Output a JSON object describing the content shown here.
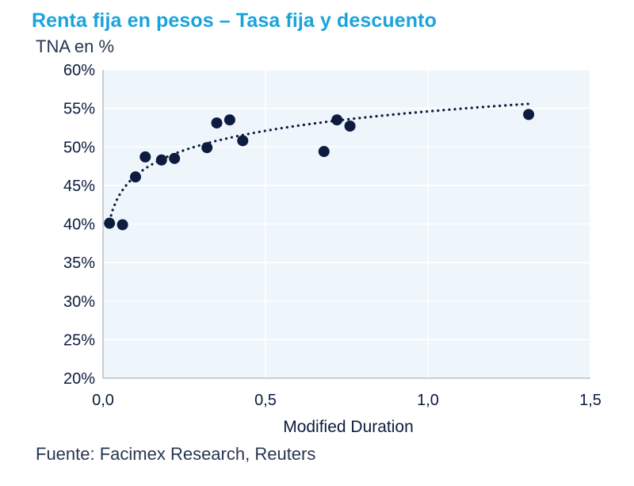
{
  "title": "Renta fija en pesos – Tasa fija y descuento",
  "subtitle": "TNA en %",
  "source": "Fuente: Facimex Research, Reuters",
  "colors": {
    "title": "#1aa3dc",
    "plot_bg": "#eef6fc",
    "marker": "#0d1b3e",
    "grid": "#ffffff"
  },
  "chart_data": {
    "type": "scatter",
    "title": "Renta fija en pesos – Tasa fija y descuento",
    "ylabel": "TNA en %",
    "xlabel": "Modified Duration",
    "xlim": [
      0,
      1.5
    ],
    "ylim": [
      20,
      60
    ],
    "x_ticks": [
      0,
      0.5,
      1.0,
      1.5
    ],
    "x_tick_labels": [
      "0,0",
      "0,5",
      "1,0",
      "1,5"
    ],
    "y_ticks": [
      20,
      25,
      30,
      35,
      40,
      45,
      50,
      55,
      60
    ],
    "y_tick_labels": [
      "20%",
      "25%",
      "30%",
      "35%",
      "40%",
      "45%",
      "50%",
      "55%",
      "60%"
    ],
    "grid": true,
    "points": [
      {
        "x": 0.02,
        "y": 40.1
      },
      {
        "x": 0.06,
        "y": 39.9
      },
      {
        "x": 0.1,
        "y": 46.1
      },
      {
        "x": 0.13,
        "y": 48.7
      },
      {
        "x": 0.18,
        "y": 48.3
      },
      {
        "x": 0.22,
        "y": 48.5
      },
      {
        "x": 0.32,
        "y": 49.9
      },
      {
        "x": 0.35,
        "y": 53.1
      },
      {
        "x": 0.39,
        "y": 53.5
      },
      {
        "x": 0.43,
        "y": 50.8
      },
      {
        "x": 0.68,
        "y": 49.4
      },
      {
        "x": 0.72,
        "y": 53.5
      },
      {
        "x": 0.76,
        "y": 52.7
      },
      {
        "x": 1.31,
        "y": 54.2
      }
    ],
    "trendline": {
      "type": "logarithmic",
      "style": "dotted",
      "a": 54.6,
      "b": 3.63,
      "x_from": 0.02,
      "x_to": 1.31
    }
  }
}
